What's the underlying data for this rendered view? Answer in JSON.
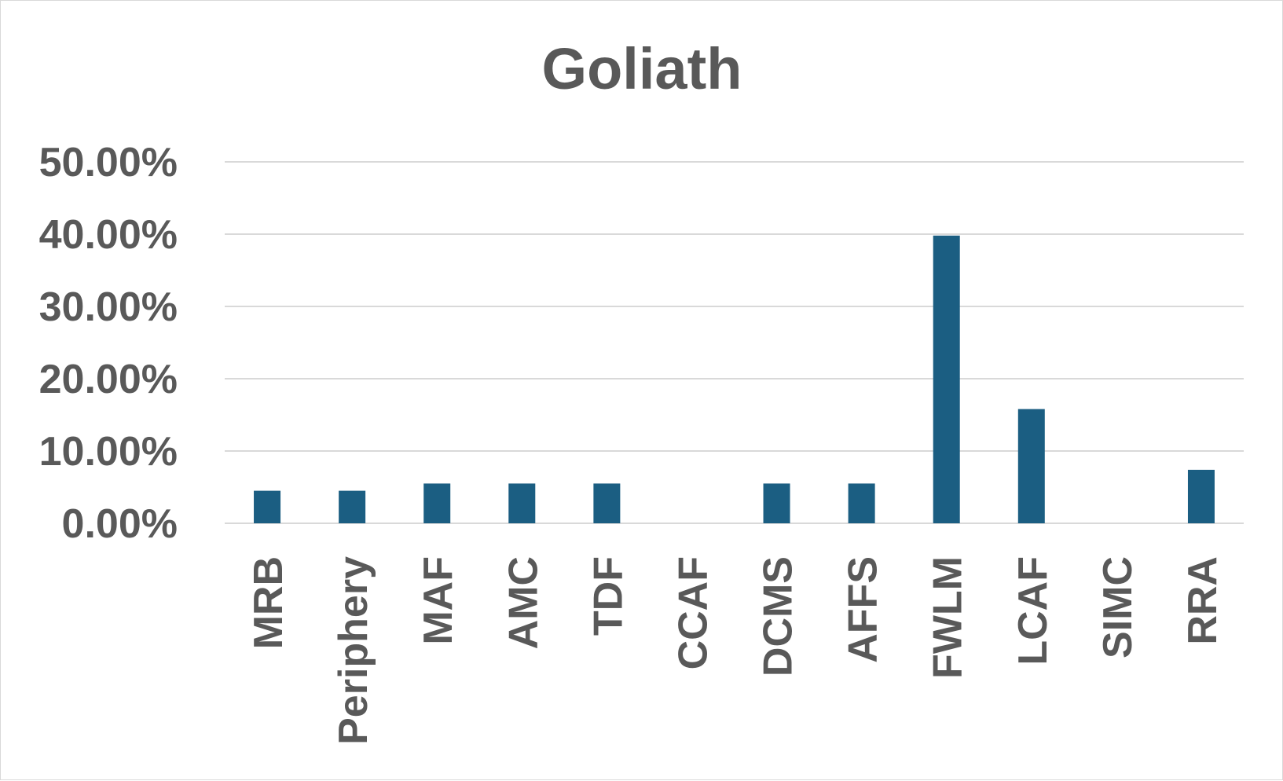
{
  "chart_data": {
    "type": "bar",
    "title": "Goliath",
    "categories": [
      "MRB",
      "Periphery",
      "MAF",
      "AMC",
      "TDF",
      "CCAF",
      "DCMS",
      "AFFS",
      "FWLM",
      "LCAF",
      "SIMC",
      "RRA"
    ],
    "series": [
      {
        "values": [
          4.5,
          4.5,
          5.5,
          5.5,
          5.5,
          0,
          5.5,
          5.5,
          39.8,
          15.8,
          0,
          7.4
        ],
        "color": "#1b5e82"
      }
    ],
    "y_ticks": [
      "0.00%",
      "10.00%",
      "20.00%",
      "30.00%",
      "40.00%",
      "50.00%"
    ],
    "ylim": [
      0,
      50
    ],
    "xlabel": "",
    "ylabel": "",
    "grid": true,
    "legend": "none"
  }
}
